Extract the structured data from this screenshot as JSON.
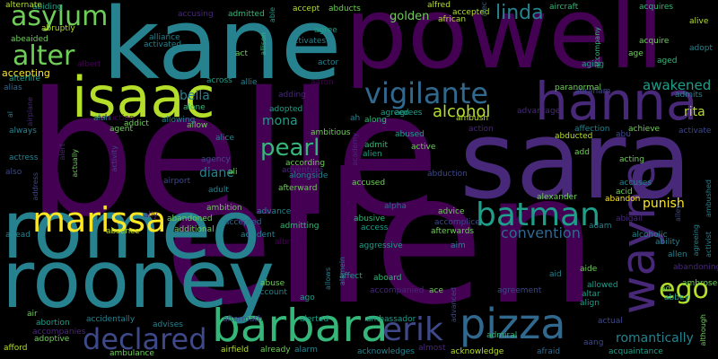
{
  "palette": {
    "background": "#000000",
    "dark_purple": "#440154",
    "indigo": "#482878",
    "slate": "#3e4989",
    "steel": "#31688e",
    "teal": "#26828e",
    "green_teal": "#1f9e89",
    "green": "#35b779",
    "lime": "#6ece58",
    "yellow_green": "#b5de2b",
    "yellow": "#fde725"
  },
  "words": [
    {
      "text": "belle",
      "color": "dark_purple"
    },
    {
      "text": "ellen",
      "color": "dark_purple"
    },
    {
      "text": "sara",
      "color": "indigo"
    },
    {
      "text": "powell",
      "color": "dark_purple"
    },
    {
      "text": "kane",
      "color": "teal"
    },
    {
      "text": "romeo",
      "color": "teal"
    },
    {
      "text": "rooney",
      "color": "teal"
    },
    {
      "text": "isaac",
      "color": "yellow_green"
    },
    {
      "text": "hanna",
      "color": "indigo"
    },
    {
      "text": "barbara",
      "color": "green"
    },
    {
      "text": "batman",
      "color": "green_teal"
    },
    {
      "text": "wayne",
      "color": "indigo"
    },
    {
      "text": "marissa",
      "color": "yellow"
    },
    {
      "text": "declared",
      "color": "slate"
    },
    {
      "text": "pizza",
      "color": "steel"
    },
    {
      "text": "vigilante",
      "color": "steel"
    },
    {
      "text": "asylum",
      "color": "lime"
    },
    {
      "text": "alter",
      "color": "lime"
    },
    {
      "text": "erik",
      "color": "slate"
    },
    {
      "text": "ego",
      "color": "yellow_green"
    },
    {
      "text": "pearl",
      "color": "green"
    },
    {
      "text": "linda",
      "color": "teal"
    },
    {
      "text": "golden",
      "color": "lime"
    },
    {
      "text": "alcohol",
      "color": "yellow_green"
    },
    {
      "text": "awakened",
      "color": "green_teal"
    },
    {
      "text": "mona",
      "color": "green_teal"
    },
    {
      "text": "convention",
      "color": "steel"
    },
    {
      "text": "diane",
      "color": "teal"
    },
    {
      "text": "punish",
      "color": "yellow"
    },
    {
      "text": "bella",
      "color": "teal"
    },
    {
      "text": "rita",
      "color": "yellow_green"
    },
    {
      "text": "romantically",
      "color": "teal"
    },
    {
      "text": "abiding",
      "color": "green_teal"
    },
    {
      "text": "abeaided",
      "color": "lime"
    },
    {
      "text": "abruptly",
      "color": "yellow_green"
    },
    {
      "text": "accepting",
      "color": "yellow"
    },
    {
      "text": "afterlife",
      "color": "green_teal"
    },
    {
      "text": "alias",
      "color": "steel"
    },
    {
      "text": "alternate",
      "color": "yellow_green"
    },
    {
      "text": "accusing",
      "color": "indigo"
    },
    {
      "text": "admitted",
      "color": "green"
    },
    {
      "text": "able",
      "color": "green_teal"
    },
    {
      "text": "allison",
      "color": "green"
    },
    {
      "text": "accept",
      "color": "yellow_green"
    },
    {
      "text": "abducts",
      "color": "lime"
    },
    {
      "text": "alfred",
      "color": "yellow_green"
    },
    {
      "text": "accepted",
      "color": "yellow_green"
    },
    {
      "text": "alec",
      "color": "steel"
    },
    {
      "text": "aircraft",
      "color": "green"
    },
    {
      "text": "acquires",
      "color": "green"
    },
    {
      "text": "alive",
      "color": "yellow_green"
    },
    {
      "text": "african",
      "color": "yellow_green"
    },
    {
      "text": "activates",
      "color": "teal"
    },
    {
      "text": "agree",
      "color": "green_teal"
    },
    {
      "text": "actor",
      "color": "teal"
    },
    {
      "text": "alliance",
      "color": "teal"
    },
    {
      "text": "activated",
      "color": "teal"
    },
    {
      "text": "albert",
      "color": "dark_purple"
    },
    {
      "text": "act",
      "color": "lime"
    },
    {
      "text": "allie",
      "color": "teal"
    },
    {
      "text": "across",
      "color": "green_teal"
    },
    {
      "text": "aaron",
      "color": "dark_purple"
    },
    {
      "text": "adding",
      "color": "indigo"
    },
    {
      "text": "adopted",
      "color": "green_teal"
    },
    {
      "text": "abused",
      "color": "green_teal"
    },
    {
      "text": "ambitious",
      "color": "lime"
    },
    {
      "text": "ah",
      "color": "teal"
    },
    {
      "text": "agreed",
      "color": "green_teal"
    },
    {
      "text": "agrees",
      "color": "green_teal"
    },
    {
      "text": "ambush",
      "color": "yellow_green"
    },
    {
      "text": "along",
      "color": "green"
    },
    {
      "text": "action",
      "color": "indigo"
    },
    {
      "text": "advantage",
      "color": "indigo"
    },
    {
      "text": "affection",
      "color": "teal"
    },
    {
      "text": "achieve",
      "color": "lime"
    },
    {
      "text": "activate",
      "color": "slate"
    },
    {
      "text": "abraham",
      "color": "slate"
    },
    {
      "text": "paranormal",
      "color": "lime"
    },
    {
      "text": "admits",
      "color": "teal"
    },
    {
      "text": "aging",
      "color": "green_teal"
    },
    {
      "text": "age",
      "color": "lime"
    },
    {
      "text": "aged",
      "color": "green"
    },
    {
      "text": "acquire",
      "color": "lime"
    },
    {
      "text": "adopt",
      "color": "teal"
    },
    {
      "text": "abu",
      "color": "slate"
    },
    {
      "text": "abducted",
      "color": "yellow_green"
    },
    {
      "text": "accompany",
      "color": "green"
    },
    {
      "text": "alan",
      "color": "green_teal"
    },
    {
      "text": "addict",
      "color": "lime"
    },
    {
      "text": "addiction",
      "color": "dark_purple"
    },
    {
      "text": "alone",
      "color": "green"
    },
    {
      "text": "allow",
      "color": "lime"
    },
    {
      "text": "allowing",
      "color": "teal"
    },
    {
      "text": "agent",
      "color": "lime"
    },
    {
      "text": "alice",
      "color": "teal"
    },
    {
      "text": "agency",
      "color": "slate"
    },
    {
      "text": "ali",
      "color": "lime"
    },
    {
      "text": "adult",
      "color": "teal"
    },
    {
      "text": "always",
      "color": "teal"
    },
    {
      "text": "airplane",
      "color": "indigo"
    },
    {
      "text": "al",
      "color": "teal"
    },
    {
      "text": "alert",
      "color": "indigo"
    },
    {
      "text": "actress",
      "color": "teal"
    },
    {
      "text": "also",
      "color": "slate"
    },
    {
      "text": "activity",
      "color": "slate"
    },
    {
      "text": "actually",
      "color": "lime"
    },
    {
      "text": "address",
      "color": "slate"
    },
    {
      "text": "airport",
      "color": "slate"
    },
    {
      "text": "ahead",
      "color": "teal"
    },
    {
      "text": "absence",
      "color": "yellow_green"
    },
    {
      "text": "ally",
      "color": "indigo"
    },
    {
      "text": "abandoned",
      "color": "lime"
    },
    {
      "text": "additional",
      "color": "lime"
    },
    {
      "text": "accepted",
      "color": "steel"
    },
    {
      "text": "accident",
      "color": "teal"
    },
    {
      "text": "albright",
      "color": "dark_purple"
    },
    {
      "text": "ambition",
      "color": "lime"
    },
    {
      "text": "advance",
      "color": "teal"
    },
    {
      "text": "admitting",
      "color": "green"
    },
    {
      "text": "according",
      "color": "lime"
    },
    {
      "text": "adventure",
      "color": "indigo"
    },
    {
      "text": "alongside",
      "color": "teal"
    },
    {
      "text": "afterward",
      "color": "lime"
    },
    {
      "text": "accused",
      "color": "lime"
    },
    {
      "text": "academy",
      "color": "indigo"
    },
    {
      "text": "alien",
      "color": "green_teal"
    },
    {
      "text": "active",
      "color": "lime"
    },
    {
      "text": "admit",
      "color": "green"
    },
    {
      "text": "abduction",
      "color": "slate"
    },
    {
      "text": "add",
      "color": "lime"
    },
    {
      "text": "acting",
      "color": "lime"
    },
    {
      "text": "accuses",
      "color": "teal"
    },
    {
      "text": "acid",
      "color": "lime"
    },
    {
      "text": "ambushed",
      "color": "teal"
    },
    {
      "text": "alexander",
      "color": "lime"
    },
    {
      "text": "abandon",
      "color": "yellow"
    },
    {
      "text": "abigail",
      "color": "indigo"
    },
    {
      "text": "alley",
      "color": "slate"
    },
    {
      "text": "alpha",
      "color": "steel"
    },
    {
      "text": "advice",
      "color": "lime"
    },
    {
      "text": "abusive",
      "color": "green"
    },
    {
      "text": "access",
      "color": "green_teal"
    },
    {
      "text": "accomplice",
      "color": "slate"
    },
    {
      "text": "afterwards",
      "color": "lime"
    },
    {
      "text": "aim",
      "color": "teal"
    },
    {
      "text": "adam",
      "color": "teal"
    },
    {
      "text": "alcoholic",
      "color": "teal"
    },
    {
      "text": "ability",
      "color": "teal"
    },
    {
      "text": "allen",
      "color": "teal"
    },
    {
      "text": "agreeing",
      "color": "teal"
    },
    {
      "text": "activist",
      "color": "teal"
    },
    {
      "text": "abandoning",
      "color": "indigo"
    },
    {
      "text": "ambrose",
      "color": "lime"
    },
    {
      "text": "abbey",
      "color": "green_teal"
    },
    {
      "text": "ad",
      "color": "lime"
    },
    {
      "text": "although",
      "color": "lime"
    },
    {
      "text": "aggressive",
      "color": "green_teal"
    },
    {
      "text": "alamein",
      "color": "teal"
    },
    {
      "text": "allows",
      "color": "teal"
    },
    {
      "text": "affect",
      "color": "green_teal"
    },
    {
      "text": "aboard",
      "color": "green"
    },
    {
      "text": "ace",
      "color": "lime"
    },
    {
      "text": "agreement",
      "color": "slate"
    },
    {
      "text": "aid",
      "color": "teal"
    },
    {
      "text": "aide",
      "color": "lime"
    },
    {
      "text": "allowed",
      "color": "green_teal"
    },
    {
      "text": "altar",
      "color": "green_teal"
    },
    {
      "text": "align",
      "color": "green_teal"
    },
    {
      "text": "actual",
      "color": "slate"
    },
    {
      "text": "aang",
      "color": "slate"
    },
    {
      "text": "abuse",
      "color": "lime"
    },
    {
      "text": "account",
      "color": "teal"
    },
    {
      "text": "ago",
      "color": "green_teal"
    },
    {
      "text": "accompanied",
      "color": "indigo"
    },
    {
      "text": "advanced",
      "color": "slate"
    },
    {
      "text": "air",
      "color": "lime"
    },
    {
      "text": "abortion",
      "color": "green_teal"
    },
    {
      "text": "accompanies",
      "color": "indigo"
    },
    {
      "text": "adoptive",
      "color": "lime"
    },
    {
      "text": "accidentally",
      "color": "teal"
    },
    {
      "text": "advises",
      "color": "teal"
    },
    {
      "text": "afford",
      "color": "yellow_green"
    },
    {
      "text": "ambulance",
      "color": "lime"
    },
    {
      "text": "aftermath",
      "color": "slate"
    },
    {
      "text": "alerted",
      "color": "green_teal"
    },
    {
      "text": "ambassador",
      "color": "green_teal"
    },
    {
      "text": "airfield",
      "color": "yellow_green"
    },
    {
      "text": "already",
      "color": "lime"
    },
    {
      "text": "alarm",
      "color": "teal"
    },
    {
      "text": "acknowledges",
      "color": "teal"
    },
    {
      "text": "almost",
      "color": "indigo"
    },
    {
      "text": "admiral",
      "color": "green"
    },
    {
      "text": "acknowledge",
      "color": "yellow_green"
    },
    {
      "text": "afraid",
      "color": "steel"
    },
    {
      "text": "acquaintance",
      "color": "green_teal"
    }
  ]
}
